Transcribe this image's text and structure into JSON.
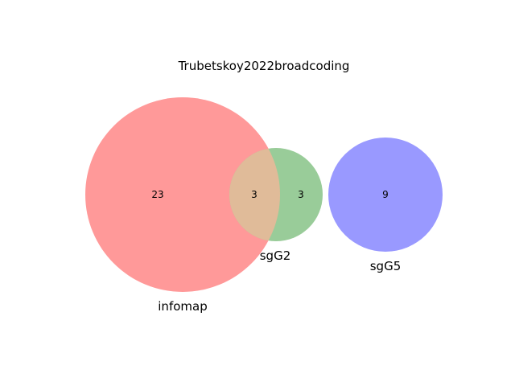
{
  "title": "Trubetskoy2022broadcoding",
  "sets": {
    "infomap": {
      "label": "infomap",
      "color": "#ff9999"
    },
    "sgG2": {
      "label": "sgG2",
      "color": "#99cc99"
    },
    "sgG5": {
      "label": "sgG5",
      "color": "#9999ff"
    },
    "overlap_color": "#e0bb99"
  },
  "regions": {
    "infomap_only": "23",
    "infomap_and_sgG2": "3",
    "sgG2_only": "3",
    "sgG5_only": "9"
  }
}
